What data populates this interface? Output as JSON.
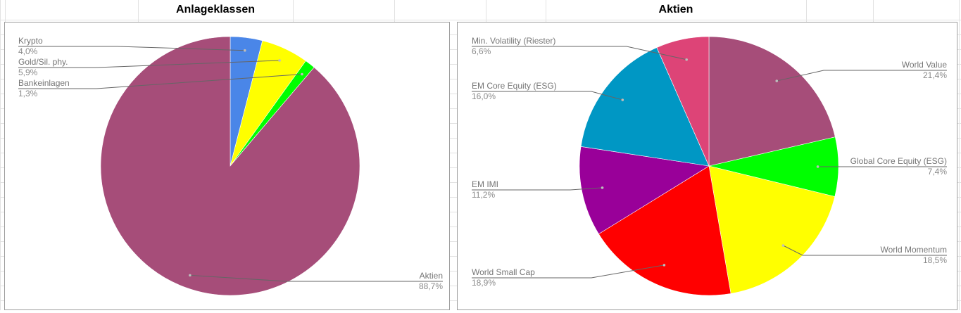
{
  "sheet": {
    "header_left": "Anlageklassen",
    "header_right": "Aktien"
  },
  "colors": {
    "label_text": "#757575",
    "label_value": "#8a8a8a",
    "leader_line": "#666666",
    "panel_border": "#9e9e9e",
    "gridline": "#e2e2e2"
  },
  "chart_data": [
    {
      "type": "pie",
      "title": "Anlageklassen",
      "slices": [
        {
          "label": "Krypto",
          "value": 4.0,
          "value_text": "4,0%",
          "color": "#4a86e8"
        },
        {
          "label": "Gold/Sil. phy.",
          "value": 5.9,
          "value_text": "5,9%",
          "color": "#ffff00"
        },
        {
          "label": "Bankeinlagen",
          "value": 1.3,
          "value_text": "1,3%",
          "color": "#00ff00"
        },
        {
          "label": "Aktien",
          "value": 88.7,
          "value_text": "88,7%",
          "color": "#a64d79"
        }
      ]
    },
    {
      "type": "pie",
      "title": "Aktien",
      "slices": [
        {
          "label": "World Value",
          "value": 21.4,
          "value_text": "21,4%",
          "color": "#a64d79"
        },
        {
          "label": "Global Core Equity (ESG)",
          "value": 7.4,
          "value_text": "7,4%",
          "color": "#00ff00"
        },
        {
          "label": "World Momentum",
          "value": 18.5,
          "value_text": "18,5%",
          "color": "#ffff00"
        },
        {
          "label": "World Small Cap",
          "value": 18.9,
          "value_text": "18,9%",
          "color": "#ff0000"
        },
        {
          "label": "EM IMI",
          "value": 11.2,
          "value_text": "11,2%",
          "color": "#990099"
        },
        {
          "label": "EM Core Equity (ESG)",
          "value": 16.0,
          "value_text": "16,0%",
          "color": "#0097c4"
        },
        {
          "label": "Min. Volatility (Riester)",
          "value": 6.6,
          "value_text": "6,6%",
          "color": "#dd4477"
        }
      ]
    }
  ]
}
